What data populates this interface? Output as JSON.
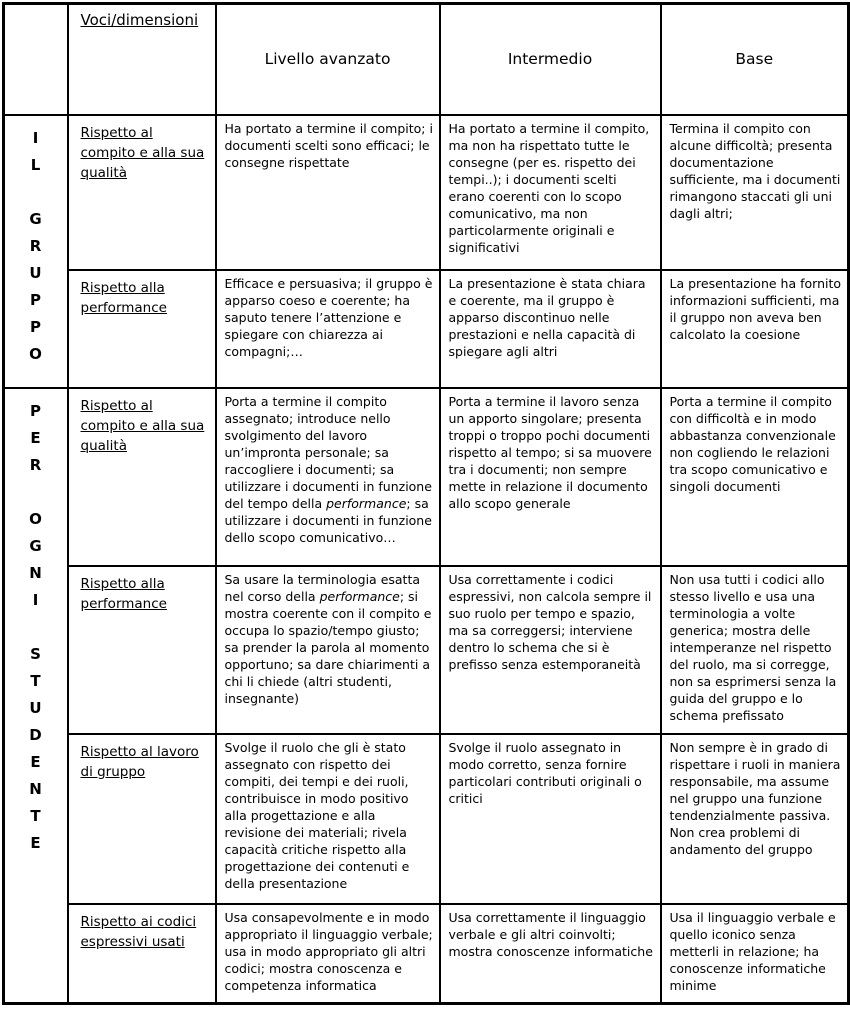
{
  "table": {
    "header": {
      "dimensions_label": "Voci/dimensioni",
      "levels": [
        "Livello avanzato",
        "Intermedio",
        "Base"
      ]
    },
    "italic_words": [
      "performance"
    ],
    "groups": [
      {
        "name": "IL GRUPPO",
        "vertical_label": "I\nL\n\nG\nR\nU\nP\nP\nO",
        "rows": [
          {
            "dimension": "Rispetto al compito e alla sua qualità",
            "avanzato": "Ha portato a termine il compito; i documenti scelti sono efficaci; le consegne rispettate",
            "intermedio": "Ha portato a termine il compito, ma non ha rispettato tutte le consegne (per es. rispetto dei tempi..); i documenti scelti erano coerenti con lo scopo comunicativo, ma non particolarmente originali e significativi",
            "base": "Termina il compito con alcune difficoltà; presenta documentazione sufficiente, ma i documenti rimangono staccati gli uni dagli altri;"
          },
          {
            "dimension": "Rispetto alla performance",
            "avanzato": "Efficace e persuasiva; il gruppo è apparso coeso e coerente; ha saputo tenere l’attenzione e spiegare con chiarezza ai compagni;…",
            "intermedio": "La presentazione è stata chiara e coerente, ma il gruppo è apparso discontinuo nelle prestazioni e nella capacità di spiegare agli altri",
            "base": "La presentazione ha fornito informazioni sufficienti, ma il gruppo non aveva ben calcolato la coesione"
          }
        ]
      },
      {
        "name": "PER OGNI STUDENTE",
        "vertical_label": "P\nE\nR\n\nO\nG\nN\nI\n\nS\nT\nU\nD\nE\nN\nT\nE",
        "rows": [
          {
            "dimension": "Rispetto al compito e alla sua qualità",
            "avanzato": "Porta a termine il compito assegnato; introduce nello svolgimento del lavoro un’impronta personale; sa raccogliere i documenti; sa utilizzare i documenti in funzione del tempo della performance; sa utilizzare i documenti in funzione dello scopo comunicativo…",
            "intermedio": "Porta a termine il lavoro senza un apporto singolare; presenta troppi o troppo pochi documenti rispetto al tempo; si sa muovere tra i documenti; non sempre mette in relazione il documento allo scopo generale",
            "base": "Porta a termine il compito con difficoltà e in modo abbastanza convenzionale non cogliendo le relazioni tra scopo comunicativo e singoli documenti"
          },
          {
            "dimension": "Rispetto alla performance",
            "avanzato": "Sa usare la terminologia esatta nel corso della performance; si mostra coerente con il compito e occupa lo spazio/tempo giusto; sa prender la parola al momento opportuno; sa dare chiarimenti a chi li chiede (altri studenti, insegnante)",
            "intermedio": "Usa correttamente i codici espressivi, non calcola sempre il suo ruolo per tempo e spazio, ma sa correggersi; interviene dentro lo schema che si è prefisso senza estemporaneità",
            "base": "Non usa tutti i codici allo stesso livello e usa una terminologia a volte generica; mostra delle intemperanze nel rispetto del ruolo, ma si corregge, non sa esprimersi senza la guida del gruppo e lo schema prefissato"
          },
          {
            "dimension": "Rispetto al lavoro di gruppo",
            "avanzato": "Svolge il ruolo che gli è stato assegnato con rispetto dei compiti, dei tempi e dei ruoli, contribuisce in modo positivo alla progettazione e alla revisione dei materiali; rivela capacità critiche rispetto alla progettazione dei contenuti e della presentazione",
            "intermedio": "Svolge il ruolo assegnato in modo corretto, senza fornire particolari contributi originali o critici",
            "base": "Non sempre è in grado di rispettare i ruoli in maniera responsabile, ma assume nel gruppo una funzione tendenzialmente passiva. Non crea problemi di andamento del gruppo"
          },
          {
            "dimension": "Rispetto ai codici espressivi usati",
            "avanzato": "Usa consapevolmente e in modo appropriato il linguaggio verbale; usa in modo appropriato gli altri codici; mostra conoscenza e competenza informatica",
            "intermedio": "Usa correttamente il linguaggio verbale e gli altri coinvolti; mostra conoscenze informatiche",
            "base": "Usa il linguaggio verbale e quello iconico senza metterli in relazione; ha conoscenze informatiche minime"
          }
        ]
      }
    ]
  }
}
